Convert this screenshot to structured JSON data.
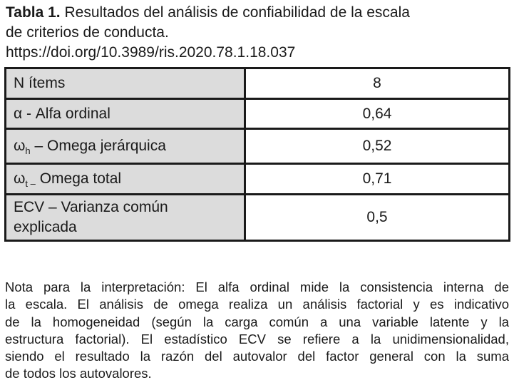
{
  "caption": {
    "label": "Tabla 1.",
    "title_line1": "Resultados del análisis de confiabilidad de la escala",
    "title_line2": "de criterios de conducta.",
    "doi": "https://doi.org/10.3989/ris.2020.78.1.18.037"
  },
  "table": {
    "rows": [
      {
        "label": "N ítems",
        "value": "8"
      },
      {
        "label": "α - Alfa ordinal",
        "value": "0,64"
      },
      {
        "symbol": "ω",
        "sub": "h",
        "label": " – Omega jerárquica",
        "value": "0,52"
      },
      {
        "symbol": "ω",
        "sub": "t –",
        "label": " Omega total",
        "value": "0,71"
      },
      {
        "label_line1": "ECV – Varianza común",
        "label_line2": "explicada",
        "value": "0,5"
      }
    ]
  },
  "note": {
    "lines": [
      "Nota para la interpretación: El alfa ordinal mide la consistencia interna de",
      "la escala. El análisis de omega realiza un análisis factorial y es indicativo",
      "de la homogeneidad (según la carga común a una variable latente y la",
      "estructura factorial). El estadístico ECV se refiere a la unidimensionalidad,",
      "siendo el resultado la razón del autovalor del factor general con la suma",
      "de todos los autovalores."
    ]
  }
}
